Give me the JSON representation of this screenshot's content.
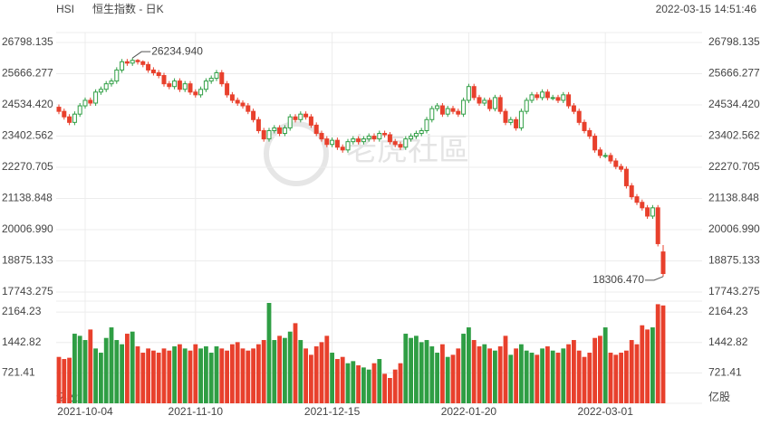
{
  "chart_data": {
    "type": "candlestick",
    "title": "HSI",
    "subtitle": "恒生指数 - 日K",
    "timestamp": "2022-03-15 14:51:46",
    "watermark": "老虎社區",
    "volume_unit": "亿股",
    "grid": true,
    "colors": {
      "up": "#2f9e44",
      "down": "#e8402c"
    },
    "categories": [
      null,
      null,
      null,
      null,
      null,
      "2021-10-04",
      null,
      null,
      null,
      null,
      null,
      null,
      null,
      null,
      null,
      null,
      null,
      null,
      null,
      null,
      null,
      null,
      null,
      null,
      null,
      null,
      "2021-11-10",
      null,
      null,
      null,
      null,
      null,
      null,
      null,
      null,
      null,
      null,
      null,
      null,
      null,
      null,
      null,
      null,
      null,
      null,
      null,
      null,
      null,
      null,
      null,
      null,
      null,
      "2021-12-15",
      null,
      null,
      null,
      null,
      null,
      null,
      null,
      null,
      null,
      null,
      null,
      null,
      null,
      null,
      null,
      null,
      null,
      null,
      null,
      null,
      null,
      null,
      null,
      null,
      null,
      "2022-01-20",
      null,
      null,
      null,
      null,
      null,
      null,
      null,
      null,
      null,
      null,
      null,
      null,
      null,
      null,
      null,
      null,
      null,
      null,
      null,
      null,
      null,
      null,
      null,
      null,
      null,
      "2022-03-01",
      null,
      null,
      null,
      null,
      null,
      null,
      null,
      null,
      null,
      null,
      null
    ],
    "open": [
      24450,
      24300,
      24100,
      23900,
      24200,
      24500,
      24700,
      24600,
      25000,
      25100,
      25300,
      25400,
      25800,
      26100,
      26050,
      26150,
      26100,
      26000,
      25800,
      25700,
      25600,
      25300,
      25200,
      25400,
      25100,
      25300,
      25000,
      24900,
      25100,
      25400,
      25500,
      25700,
      25300,
      24900,
      24700,
      24600,
      24500,
      24300,
      24000,
      23600,
      23300,
      23600,
      23700,
      23500,
      23700,
      24100,
      24000,
      24200,
      24100,
      23800,
      23500,
      23300,
      23100,
      23250,
      23000,
      22900,
      23200,
      23300,
      23200,
      23300,
      23400,
      23300,
      23500,
      23450,
      23200,
      23100,
      23000,
      23300,
      23400,
      23500,
      23600,
      24000,
      24400,
      24500,
      24200,
      24400,
      24300,
      24200,
      24700,
      25200,
      24800,
      24600,
      24700,
      24400,
      24800,
      24300,
      23900,
      24000,
      23700,
      24300,
      24700,
      24900,
      24800,
      25000,
      24800,
      24800,
      24700,
      24900,
      24500,
      24300,
      23900,
      23600,
      23400,
      22900,
      22700,
      22700,
      22500,
      22300,
      22200,
      21600,
      21200,
      21000,
      20800,
      20500,
      20800,
      19200
    ],
    "high": [
      24550,
      24400,
      24200,
      24300,
      24600,
      24800,
      24800,
      25100,
      25200,
      25400,
      25500,
      25900,
      26200,
      26200,
      26234.94,
      26200,
      26150,
      26100,
      25900,
      25800,
      25700,
      25400,
      25500,
      25500,
      25400,
      25400,
      25100,
      25200,
      25500,
      25600,
      25800,
      25800,
      25400,
      25000,
      24800,
      24700,
      24600,
      24400,
      24100,
      23700,
      23700,
      23800,
      23800,
      23800,
      24200,
      24200,
      24300,
      24300,
      24200,
      23900,
      23600,
      23400,
      23350,
      23350,
      23100,
      23300,
      23400,
      23400,
      23400,
      23500,
      23500,
      23600,
      23600,
      23550,
      23300,
      23200,
      23400,
      23500,
      23600,
      23700,
      24100,
      24500,
      24600,
      24600,
      24500,
      24500,
      24400,
      24800,
      25300,
      25300,
      24900,
      24800,
      24800,
      24900,
      24900,
      24400,
      24100,
      24100,
      24400,
      24800,
      25000,
      25000,
      25100,
      25100,
      24900,
      24900,
      25000,
      25000,
      24600,
      24400,
      24000,
      23700,
      23500,
      23000,
      22800,
      22800,
      22600,
      22400,
      22300,
      21700,
      21300,
      21100,
      20900,
      20900,
      20900,
      19450
    ],
    "low": [
      24200,
      24000,
      23800,
      23800,
      24100,
      24400,
      24500,
      24500,
      24900,
      25000,
      25200,
      25300,
      25700,
      25950,
      25950,
      26000,
      25900,
      25700,
      25600,
      25500,
      25200,
      25100,
      25100,
      25000,
      25000,
      24900,
      24800,
      24800,
      25000,
      25300,
      25400,
      25200,
      24800,
      24600,
      24500,
      24400,
      24200,
      23900,
      23500,
      23200,
      23200,
      23500,
      23400,
      23400,
      23600,
      23900,
      23900,
      24000,
      23700,
      23400,
      23200,
      23000,
      23000,
      22900,
      22800,
      22800,
      23100,
      23100,
      23100,
      23200,
      23200,
      23200,
      23350,
      23100,
      23000,
      22900,
      22900,
      23200,
      23300,
      23400,
      23500,
      23900,
      24300,
      24100,
      24100,
      24200,
      24100,
      24100,
      24600,
      24700,
      24500,
      24500,
      24300,
      24300,
      24200,
      23800,
      23800,
      23600,
      23600,
      24200,
      24600,
      24700,
      24700,
      24700,
      24700,
      24600,
      24600,
      24400,
      24200,
      23800,
      23500,
      23300,
      22800,
      22600,
      22600,
      22400,
      22200,
      22100,
      21500,
      21100,
      20900,
      20700,
      20400,
      20400,
      19400,
      18306.47
    ],
    "close": [
      24300,
      24100,
      23900,
      24200,
      24500,
      24700,
      24600,
      25000,
      25100,
      25300,
      25400,
      25800,
      26100,
      26050,
      26150,
      26100,
      26000,
      25800,
      25700,
      25600,
      25300,
      25200,
      25400,
      25100,
      25300,
      25000,
      24900,
      25100,
      25400,
      25500,
      25700,
      25300,
      24900,
      24700,
      24600,
      24500,
      24300,
      24000,
      23600,
      23300,
      23600,
      23700,
      23500,
      23700,
      24100,
      24000,
      24200,
      24100,
      23800,
      23500,
      23300,
      23100,
      23250,
      23000,
      22900,
      23200,
      23300,
      23200,
      23300,
      23400,
      23300,
      23500,
      23450,
      23200,
      23100,
      23000,
      23300,
      23400,
      23500,
      23600,
      24000,
      24400,
      24500,
      24200,
      24400,
      24300,
      24200,
      24700,
      25200,
      24800,
      24600,
      24700,
      24400,
      24800,
      24300,
      23900,
      24000,
      23700,
      24300,
      24700,
      24900,
      24800,
      25000,
      24800,
      24800,
      24700,
      24900,
      24500,
      24300,
      23900,
      23600,
      23400,
      22900,
      22700,
      22700,
      22500,
      22300,
      22200,
      21600,
      21200,
      21000,
      20800,
      20500,
      20800,
      19500,
      18415
    ],
    "volume": [
      1100,
      1050,
      1080,
      1650,
      1600,
      1500,
      1750,
      1300,
      1200,
      1550,
      1800,
      1500,
      1400,
      1650,
      1700,
      1350,
      1200,
      1300,
      1250,
      1200,
      1300,
      1250,
      1350,
      1400,
      1300,
      1250,
      1400,
      1300,
      1350,
      1200,
      1350,
      1300,
      1250,
      1400,
      1450,
      1300,
      1250,
      1300,
      1400,
      1500,
      2380,
      1500,
      1600,
      1550,
      1700,
      1900,
      1500,
      1300,
      1150,
      1350,
      1450,
      1600,
      1200,
      1050,
      1100,
      950,
      1000,
      900,
      850,
      800,
      950,
      1050,
      700,
      600,
      800,
      950,
      1650,
      1550,
      1600,
      1450,
      1500,
      1350,
      1200,
      1400,
      1100,
      1150,
      1300,
      1650,
      1800,
      1500,
      1350,
      1400,
      1300,
      1250,
      1350,
      1600,
      1150,
      1300,
      1400,
      1250,
      1200,
      1150,
      1300,
      1350,
      1250,
      1200,
      1300,
      1400,
      1500,
      1250,
      1100,
      1200,
      1550,
      1600,
      1800,
      1200,
      1150,
      1200,
      1250,
      1500,
      1400,
      1850,
      1750,
      1800,
      2350,
      2320
    ],
    "ylim": [
      17743.275,
      26798.135
    ],
    "yticks": [
      26798.135,
      25666.277,
      {
        "value": 24534.42,
        "label": "24534.420"
      },
      23402.562,
      22270.705,
      21138.848,
      {
        "value": 20006.99,
        "label": "20006.990"
      },
      18875.133,
      17743.275
    ],
    "volume_ylim": [
      0,
      2380
    ],
    "volume_yticks": [
      2164.23,
      1442.82,
      721.41
    ],
    "annotations": [
      "26234.940",
      "18306.470"
    ]
  }
}
